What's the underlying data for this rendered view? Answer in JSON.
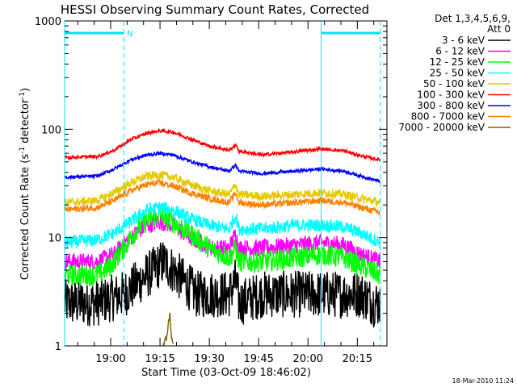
{
  "chart_data": {
    "type": "line",
    "title": "HESSI Observing Summary Count Rates, Corrected",
    "xlabel": "Start Time (03-Oct-09 18:46:02)",
    "ylabel_main": "Corrected Count Rate (s",
    "ylabel_sup1": "-1",
    "ylabel_mid": " detector",
    "ylabel_sup2": "-1",
    "ylabel_end": ")",
    "y_scale": "log",
    "ylim": [
      1,
      1000
    ],
    "y_ticks": [
      {
        "value": 1,
        "label": "1"
      },
      {
        "value": 10,
        "label": "10"
      },
      {
        "value": 100,
        "label": "100"
      },
      {
        "value": 1000,
        "label": "1000"
      }
    ],
    "xlim_minutes": [
      0,
      98
    ],
    "x_ticks": [
      {
        "minutes": 14,
        "label": "19:00"
      },
      {
        "minutes": 29,
        "label": "19:15"
      },
      {
        "minutes": 44,
        "label": "19:30"
      },
      {
        "minutes": 59,
        "label": "19:45"
      },
      {
        "minutes": 74,
        "label": "20:00"
      },
      {
        "minutes": 89,
        "label": "20:15"
      }
    ],
    "legend": {
      "header1": "Det 1,3,4,5,6,9,",
      "header2": "Att 0",
      "placement": "top-right-outside"
    },
    "series": [
      {
        "name": "3 - 6 keV",
        "color": "#000000",
        "points": [
          [
            0,
            2.5
          ],
          [
            10,
            2.5
          ],
          [
            18,
            3
          ],
          [
            23,
            4
          ],
          [
            27,
            5
          ],
          [
            30,
            6
          ],
          [
            33,
            5
          ],
          [
            36,
            4
          ],
          [
            40,
            3
          ],
          [
            45,
            3
          ],
          [
            50,
            3
          ],
          [
            52,
            4
          ],
          [
            53,
            2.5
          ],
          [
            60,
            3
          ],
          [
            70,
            3
          ],
          [
            78,
            3
          ],
          [
            85,
            3
          ],
          [
            90,
            3
          ],
          [
            94,
            2.5
          ],
          [
            96,
            2.5
          ]
        ]
      },
      {
        "name": "6 - 12 keV",
        "color": "#ff00ff",
        "points": [
          [
            0,
            6
          ],
          [
            10,
            6
          ],
          [
            15,
            7
          ],
          [
            20,
            10
          ],
          [
            25,
            13
          ],
          [
            29,
            14
          ],
          [
            33,
            13
          ],
          [
            38,
            10
          ],
          [
            45,
            8
          ],
          [
            50,
            8
          ],
          [
            52,
            11
          ],
          [
            53,
            8
          ],
          [
            60,
            8
          ],
          [
            70,
            8.5
          ],
          [
            78,
            9
          ],
          [
            85,
            8.5
          ],
          [
            90,
            7
          ],
          [
            96,
            6
          ]
        ]
      },
      {
        "name": "12 - 25 keV",
        "color": "#00ff00",
        "points": [
          [
            0,
            4.5
          ],
          [
            10,
            4.5
          ],
          [
            14,
            5.5
          ],
          [
            18,
            8
          ],
          [
            22,
            12
          ],
          [
            26,
            15
          ],
          [
            29,
            16
          ],
          [
            33,
            14
          ],
          [
            38,
            11
          ],
          [
            44,
            8
          ],
          [
            50,
            6.5
          ],
          [
            52,
            8
          ],
          [
            53,
            6
          ],
          [
            60,
            6
          ],
          [
            70,
            6.5
          ],
          [
            78,
            7
          ],
          [
            85,
            6.5
          ],
          [
            90,
            5.5
          ],
          [
            96,
            4.5
          ]
        ]
      },
      {
        "name": "25 - 50 keV",
        "color": "#00ffff",
        "points": [
          [
            0,
            9
          ],
          [
            10,
            9.5
          ],
          [
            15,
            11
          ],
          [
            20,
            14
          ],
          [
            25,
            18
          ],
          [
            29,
            19
          ],
          [
            33,
            18
          ],
          [
            38,
            15
          ],
          [
            44,
            13
          ],
          [
            50,
            12
          ],
          [
            52,
            16
          ],
          [
            53,
            12
          ],
          [
            60,
            12
          ],
          [
            70,
            13
          ],
          [
            78,
            13
          ],
          [
            85,
            12.5
          ],
          [
            90,
            11
          ],
          [
            96,
            9
          ]
        ]
      },
      {
        "name": "50 - 100 keV",
        "color": "#e6c800",
        "points": [
          [
            0,
            21
          ],
          [
            10,
            22
          ],
          [
            15,
            26
          ],
          [
            20,
            32
          ],
          [
            25,
            37
          ],
          [
            29,
            38
          ],
          [
            33,
            36
          ],
          [
            38,
            31
          ],
          [
            44,
            27
          ],
          [
            50,
            25
          ],
          [
            52,
            31
          ],
          [
            53,
            25
          ],
          [
            60,
            24
          ],
          [
            70,
            25
          ],
          [
            78,
            26
          ],
          [
            85,
            25
          ],
          [
            90,
            23
          ],
          [
            96,
            21
          ]
        ]
      },
      {
        "name": "100 - 300 keV",
        "color": "#ff0000",
        "points": [
          [
            0,
            55
          ],
          [
            10,
            56
          ],
          [
            15,
            64
          ],
          [
            20,
            80
          ],
          [
            25,
            92
          ],
          [
            29,
            97
          ],
          [
            33,
            94
          ],
          [
            38,
            82
          ],
          [
            44,
            70
          ],
          [
            50,
            64
          ],
          [
            52,
            72
          ],
          [
            53,
            63
          ],
          [
            60,
            58
          ],
          [
            70,
            62
          ],
          [
            78,
            66
          ],
          [
            85,
            63
          ],
          [
            90,
            57
          ],
          [
            96,
            52
          ]
        ]
      },
      {
        "name": "300 - 800 keV",
        "color": "#0000ff",
        "points": [
          [
            0,
            36
          ],
          [
            10,
            37
          ],
          [
            15,
            43
          ],
          [
            20,
            52
          ],
          [
            25,
            58
          ],
          [
            29,
            60
          ],
          [
            33,
            58
          ],
          [
            38,
            51
          ],
          [
            44,
            45
          ],
          [
            50,
            41
          ],
          [
            52,
            47
          ],
          [
            53,
            41
          ],
          [
            60,
            39
          ],
          [
            70,
            41
          ],
          [
            78,
            43
          ],
          [
            85,
            41
          ],
          [
            90,
            37
          ],
          [
            96,
            33
          ]
        ]
      },
      {
        "name": "800 - 7000 keV",
        "color": "#ff8000",
        "points": [
          [
            0,
            18
          ],
          [
            10,
            19
          ],
          [
            15,
            22
          ],
          [
            20,
            27
          ],
          [
            25,
            31
          ],
          [
            29,
            32
          ],
          [
            33,
            30
          ],
          [
            38,
            26
          ],
          [
            44,
            23
          ],
          [
            50,
            21
          ],
          [
            52,
            26
          ],
          [
            53,
            21
          ],
          [
            60,
            20
          ],
          [
            70,
            21
          ],
          [
            78,
            22
          ],
          [
            85,
            21
          ],
          [
            90,
            19
          ],
          [
            96,
            17
          ]
        ]
      },
      {
        "name": "7000 - 20000 keV",
        "color": "#806000",
        "points": [
          [
            30,
            1
          ],
          [
            31,
            1.2
          ],
          [
            32,
            2
          ],
          [
            32.5,
            1.2
          ],
          [
            33,
            1
          ]
        ]
      }
    ],
    "annotations": [
      {
        "type": "night-bar",
        "x0": 0,
        "x1": 18,
        "label": "N"
      },
      {
        "type": "night-bar",
        "x0": 78,
        "x1": 96,
        "label": ""
      }
    ],
    "timestamp": "18-Mar-2010 11:24"
  }
}
